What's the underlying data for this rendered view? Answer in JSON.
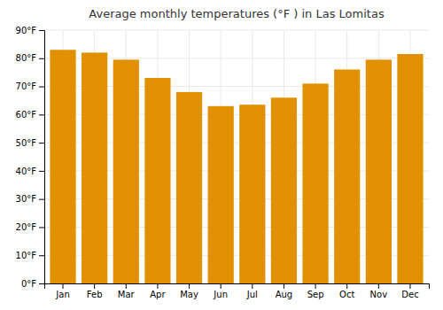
{
  "chart_data": {
    "type": "bar",
    "title": "Average monthly temperatures (°F ) in Las Lomitas",
    "categories": [
      "Jan",
      "Feb",
      "Mar",
      "Apr",
      "May",
      "Jun",
      "Jul",
      "Aug",
      "Sep",
      "Oct",
      "Nov",
      "Dec"
    ],
    "values": [
      83,
      82,
      79.5,
      73,
      68,
      63,
      63.5,
      66,
      71,
      76,
      79.5,
      81.5
    ],
    "color": "#E09000",
    "ylim": [
      0,
      90
    ],
    "yticks": [
      {
        "value": 0,
        "label": "0°F"
      },
      {
        "value": 10,
        "label": "10°F"
      },
      {
        "value": 20,
        "label": "20°F"
      },
      {
        "value": 30,
        "label": "30°F"
      },
      {
        "value": 40,
        "label": "40°F"
      },
      {
        "value": 50,
        "label": "50°F"
      },
      {
        "value": 60,
        "label": "60°F"
      },
      {
        "value": 70,
        "label": "70°F"
      },
      {
        "value": 80,
        "label": "80°F"
      },
      {
        "value": 90,
        "label": "90°F"
      }
    ],
    "grid": true
  }
}
